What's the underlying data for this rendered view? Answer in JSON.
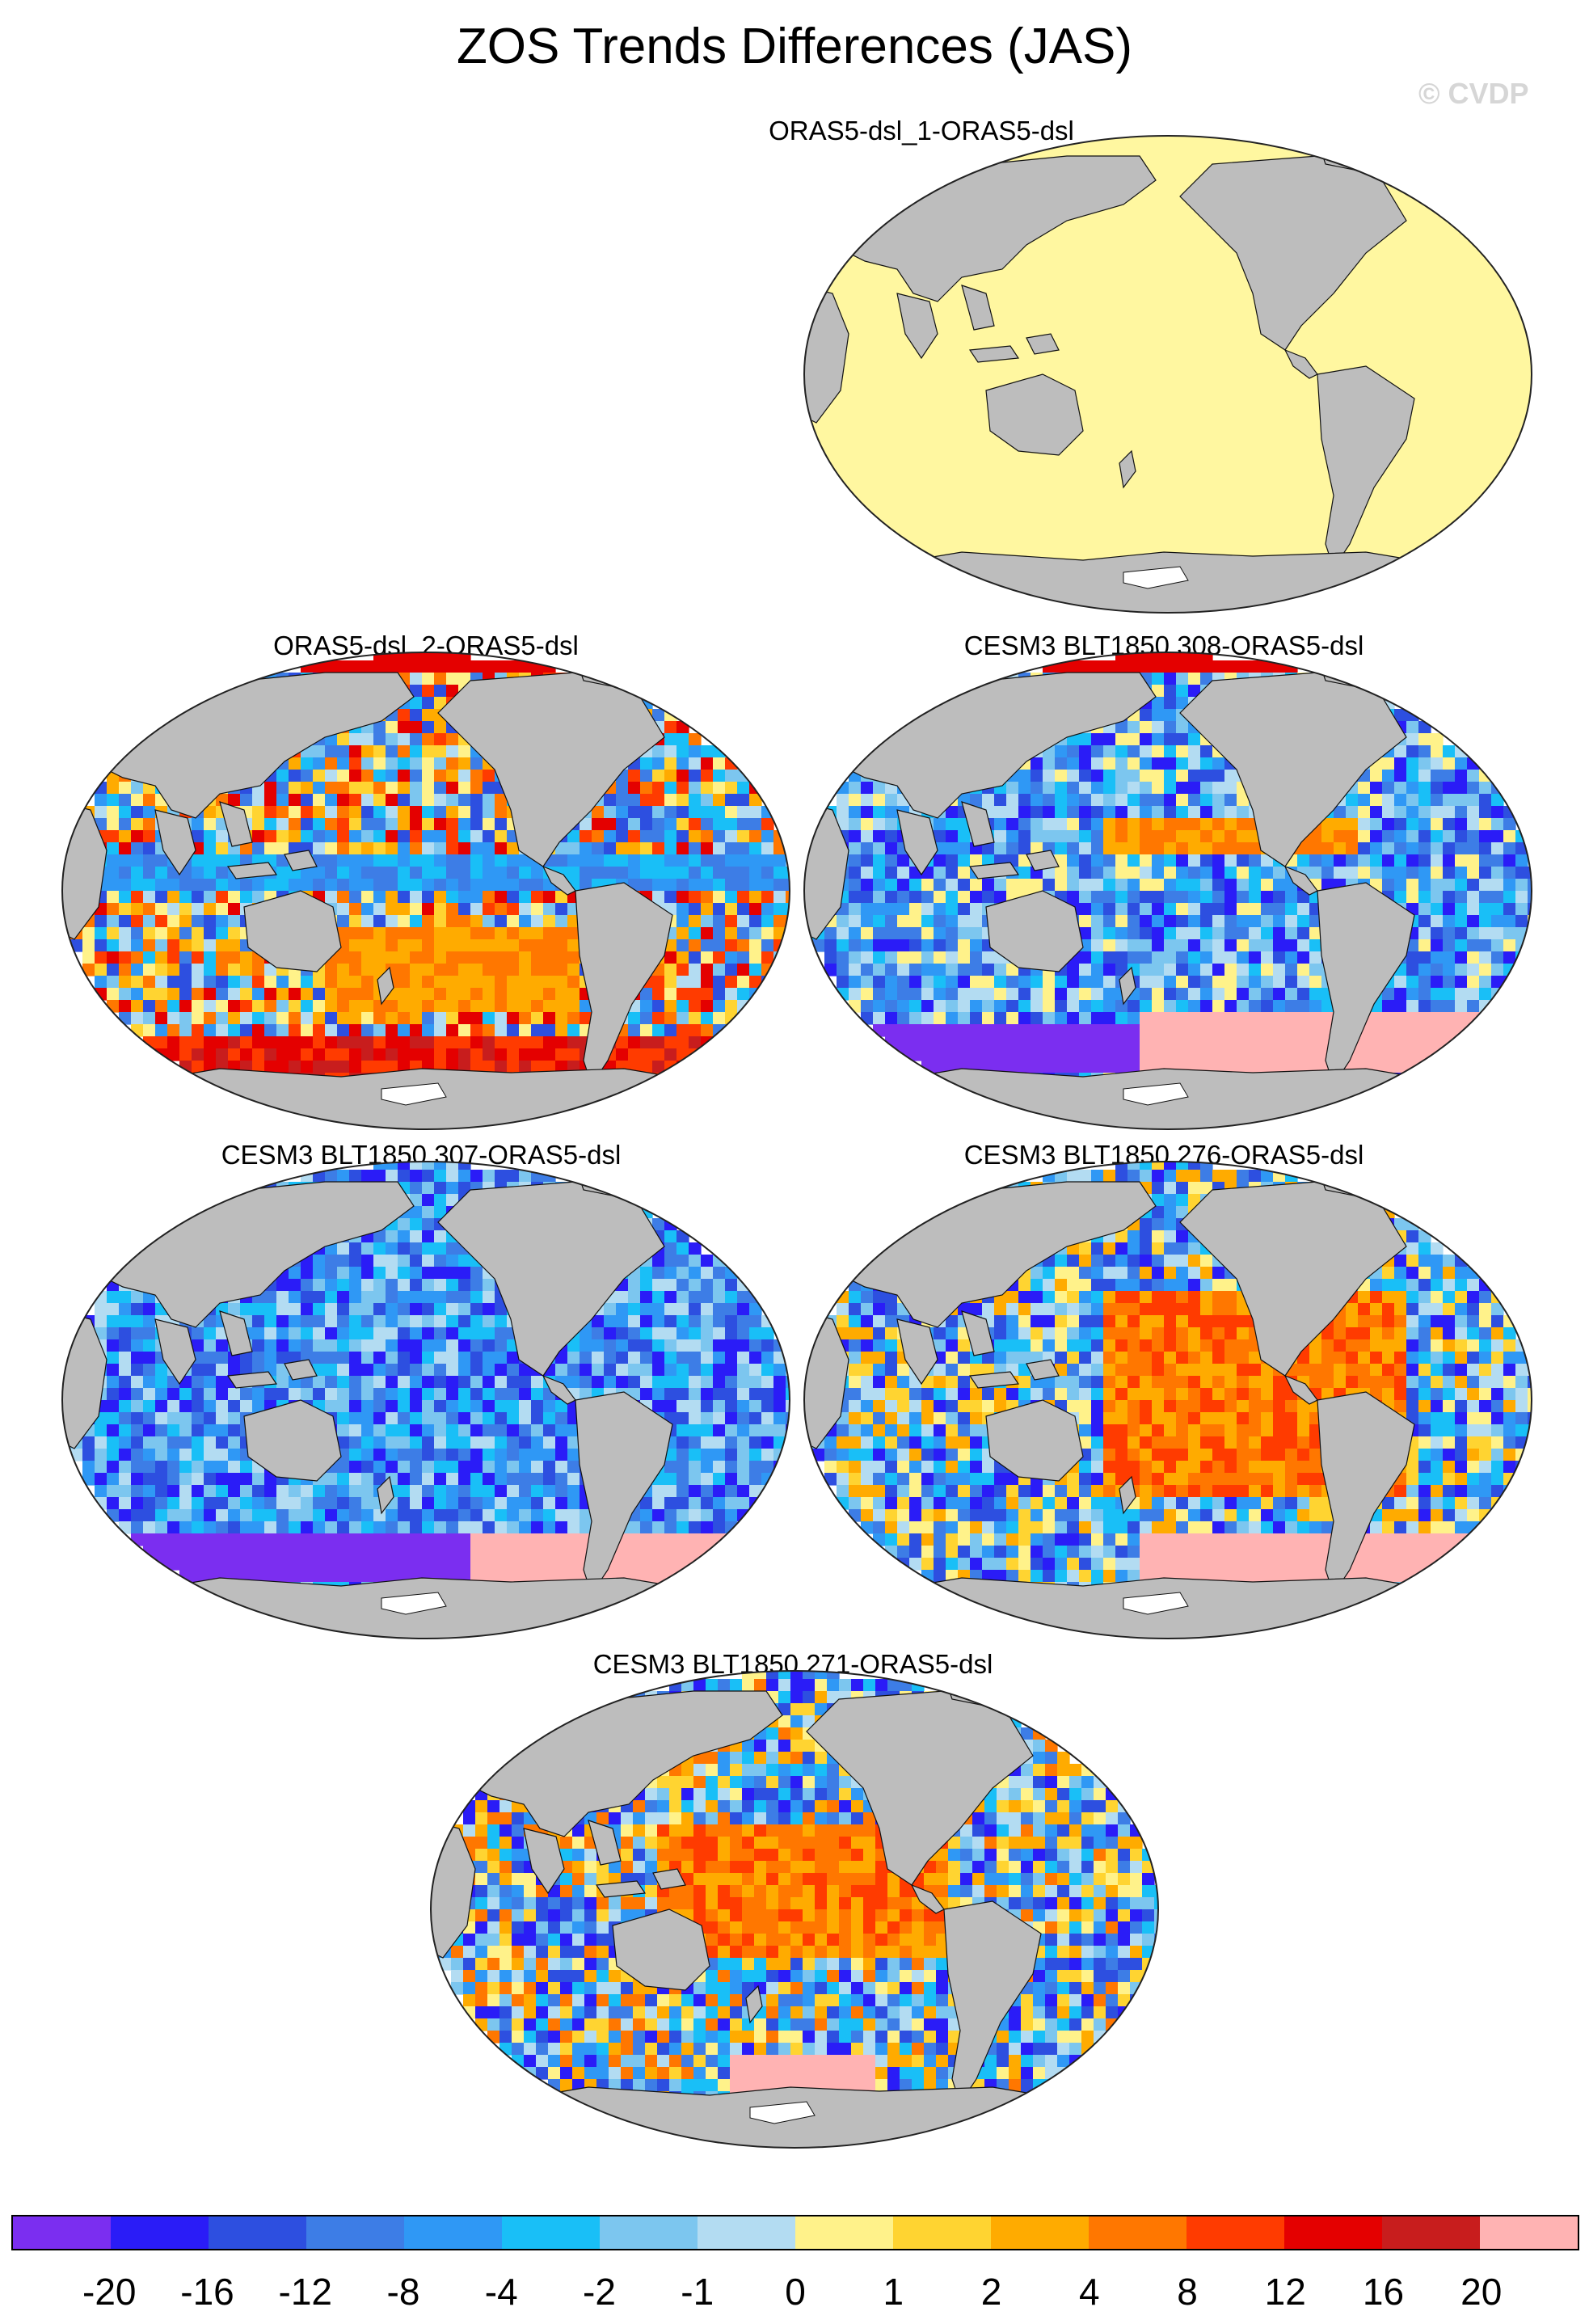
{
  "title": "ZOS Trends Differences (JAS)",
  "watermark": "© CVDP",
  "colors": {
    "land": "#bdbdbd",
    "coast": "#111111",
    "bg": "#ffffff",
    "ice": "#ffffff"
  },
  "panels": [
    {
      "id": "p1",
      "label": "ORAS5-dsl_1-ORAS5-dsl",
      "pattern": "zero"
    },
    {
      "id": "p2",
      "label": "ORAS5-dsl_2-ORAS5-dsl",
      "pattern": "mixed_pos"
    },
    {
      "id": "p3",
      "label": "CESM3 BLT1850 308-ORAS5-dsl",
      "pattern": "mixed_neg"
    },
    {
      "id": "p4",
      "label": "CESM3 BLT1850 307-ORAS5-dsl",
      "pattern": "neg"
    },
    {
      "id": "p5",
      "label": "CESM3 BLT1850 276-ORAS5-dsl",
      "pattern": "pos_pac"
    },
    {
      "id": "p6",
      "label": "CESM3 BLT1850 271-ORAS5-dsl",
      "pattern": "pos_pac2"
    }
  ],
  "colorbar": {
    "colors": [
      "#7b2ef0",
      "#2a1cf7",
      "#2d4fe0",
      "#3d7de6",
      "#2f98f5",
      "#19bff7",
      "#7cc6ef",
      "#b3dcf2",
      "#fff28a",
      "#ffd431",
      "#ffab00",
      "#ff7700",
      "#ff3b00",
      "#e40000",
      "#c81d1d",
      "#ffb3b3"
    ],
    "labels": [
      "-20",
      "-16",
      "-12",
      "-8",
      "-4",
      "-2",
      "-1",
      "0",
      "1",
      "2",
      "4",
      "8",
      "12",
      "16",
      "20"
    ]
  }
}
